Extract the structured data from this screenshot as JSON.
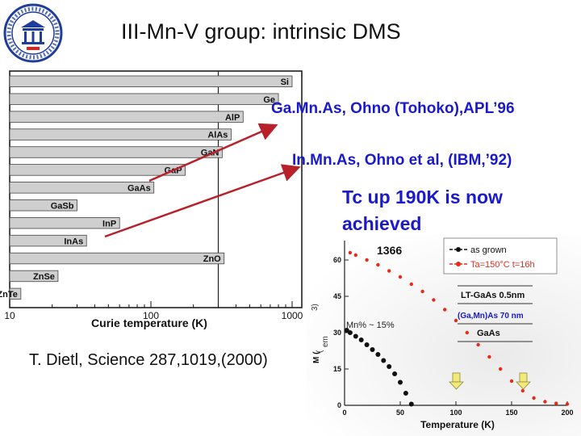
{
  "slide": {
    "title": "III-Mn-V group: intrinsic DMS",
    "callouts": [
      "Ga.Mn.As, Ohno (Tohoko),APL’96",
      "In.Mn.As, Ohno et al, (IBM,’92)",
      "Tc up 190K is now achieved"
    ],
    "citation": "T. Dietl, Science 287,1019,(2000)",
    "colors": {
      "callout": "#1a1acc",
      "arrow": "#b8202a",
      "bar": "#cfcfcf",
      "red_series": "#e82a1a"
    },
    "logo_icon": "institute-seal-icon"
  },
  "chart_data": [
    {
      "type": "bar",
      "orientation": "horizontal",
      "xlabel": "Curie temperature (K)",
      "xscale": "log",
      "xlim": [
        10,
        1000
      ],
      "xticks": [
        "10",
        "100",
        "1000"
      ],
      "reference_line_x": 300,
      "categories": [
        "Si",
        "Ge",
        "AlP",
        "AlAs",
        "GaN",
        "GaP",
        "GaAs",
        "GaSb",
        "InP",
        "InAs",
        "ZnO",
        "ZnSe",
        "ZnTe"
      ],
      "values": [
        1000,
        800,
        450,
        370,
        320,
        175,
        105,
        30,
        60,
        35,
        330,
        22,
        12
      ]
    },
    {
      "type": "scatter",
      "xlabel": "Temperature (K)",
      "ylabel": "M (",
      "xlim": [
        0,
        200
      ],
      "ylim": [
        0,
        68
      ],
      "xticks": [
        "0",
        "50",
        "100",
        "150",
        "200"
      ],
      "yticks": [
        "0",
        "15",
        "30",
        "45",
        "60"
      ],
      "annotations": [
        "1366",
        "Mn% ~ 15%",
        "LT-GaAs 0.5nm",
        "(Ga,Mn)As 70 nm",
        "GaAs"
      ],
      "series": [
        {
          "name": "as grown",
          "color": "#111111",
          "x": [
            2,
            5,
            10,
            15,
            20,
            25,
            30,
            35,
            40,
            45,
            50,
            55,
            60
          ],
          "y": [
            31,
            30,
            28.5,
            27,
            25,
            23,
            21,
            18.5,
            16,
            13,
            9.5,
            5,
            0.5
          ]
        },
        {
          "name": "Ta=150°C t=16h",
          "color": "#e82a1a",
          "x": [
            5,
            10,
            20,
            30,
            40,
            50,
            60,
            70,
            80,
            90,
            100,
            110,
            120,
            130,
            140,
            150,
            160,
            170,
            180,
            190,
            200
          ],
          "y": [
            63,
            62,
            60,
            58,
            55.5,
            53,
            50,
            47,
            43.5,
            39.5,
            35,
            30,
            25,
            20,
            15,
            10,
            6,
            3,
            1.5,
            0.8,
            0.5
          ]
        }
      ]
    }
  ]
}
